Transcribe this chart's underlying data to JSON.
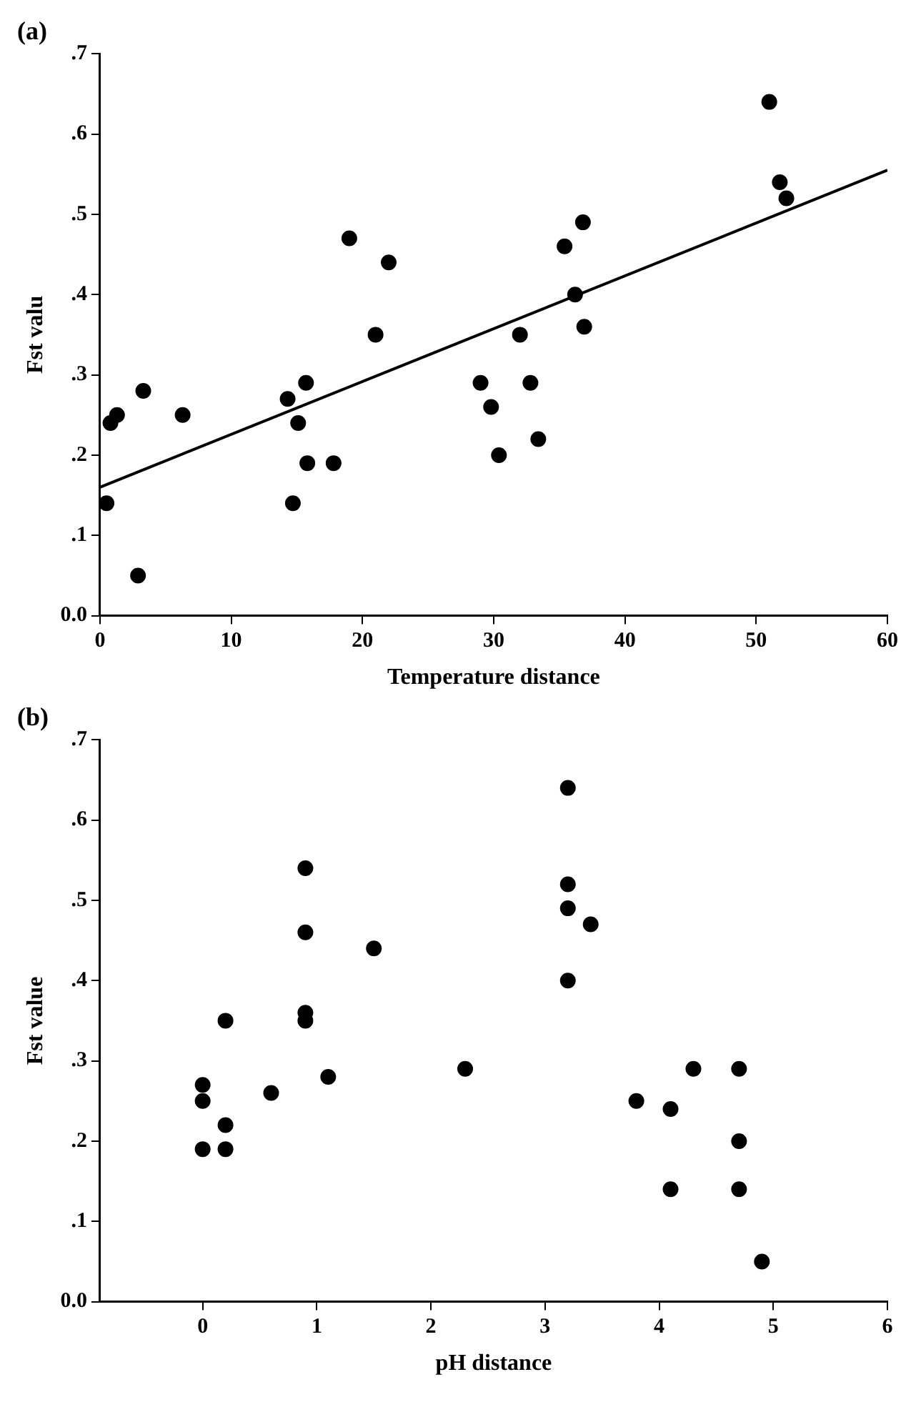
{
  "chart_data": [
    {
      "type": "scatter",
      "title": "(a)",
      "xlabel": "Temperature distance",
      "ylabel": "Fst valu",
      "xlim": [
        0,
        60
      ],
      "xticks": [
        0,
        10,
        20,
        30,
        40,
        50,
        60
      ],
      "ylim": [
        0,
        0.7
      ],
      "yticks": [
        {
          "value": 0,
          "label": "0.0"
        },
        {
          "value": 0.1,
          "label": ".1"
        },
        {
          "value": 0.2,
          "label": ".2"
        },
        {
          "value": 0.3,
          "label": ".3"
        },
        {
          "value": 0.4,
          "label": ".4"
        },
        {
          "value": 0.5,
          "label": ".5"
        },
        {
          "value": 0.6,
          "label": ".6"
        },
        {
          "value": 0.7,
          "label": ".7"
        }
      ],
      "grid": false,
      "legend": false,
      "series": [
        {
          "marker": "circle",
          "color": "#000000",
          "x": [
            0.5,
            0.8,
            1.3,
            3.3,
            2.9,
            6.3,
            14.3,
            15.1,
            15.7,
            14.7,
            15.8,
            17.8,
            19,
            21,
            22,
            29,
            29.8,
            30.4,
            32,
            32.8,
            33.4,
            35.4,
            36.2,
            36.8,
            36.9,
            51,
            51.8,
            52.3
          ],
          "values": [
            0.14,
            0.24,
            0.25,
            0.28,
            0.05,
            0.25,
            0.27,
            0.24,
            0.29,
            0.14,
            0.19,
            0.19,
            0.47,
            0.35,
            0.44,
            0.29,
            0.26,
            0.2,
            0.35,
            0.29,
            0.22,
            0.46,
            0.4,
            0.49,
            0.36,
            0.64,
            0.54,
            0.52
          ]
        },
        {
          "type": "line",
          "color": "#000000",
          "line_style": "solid",
          "x": [
            0,
            60
          ],
          "values": [
            0.16,
            0.555
          ]
        }
      ]
    },
    {
      "type": "scatter",
      "title": "(b)",
      "xlabel": "pH distance",
      "ylabel": "Fst value",
      "xlim": [
        -0.9,
        6
      ],
      "xticks": [
        0,
        1,
        2,
        3,
        4,
        5,
        6
      ],
      "ylim": [
        0,
        0.7
      ],
      "yticks": [
        {
          "value": 0,
          "label": "0.0"
        },
        {
          "value": 0.1,
          "label": ".1"
        },
        {
          "value": 0.2,
          "label": ".2"
        },
        {
          "value": 0.3,
          "label": ".3"
        },
        {
          "value": 0.4,
          "label": ".4"
        },
        {
          "value": 0.5,
          "label": ".5"
        },
        {
          "value": 0.6,
          "label": ".6"
        },
        {
          "value": 0.7,
          "label": ".7"
        }
      ],
      "grid": false,
      "legend": false,
      "series": [
        {
          "marker": "circle",
          "color": "#000000",
          "x": [
            0,
            0,
            0,
            0.2,
            0.2,
            0.2,
            0.6,
            0.9,
            0.9,
            0.9,
            0.9,
            1.1,
            1.5,
            2.3,
            3.2,
            3.2,
            3.2,
            3.4,
            3.2,
            3.8,
            4.1,
            4.3,
            4.7,
            4.1,
            4.7,
            4.7,
            4.9
          ],
          "values": [
            0.27,
            0.25,
            0.19,
            0.35,
            0.22,
            0.19,
            0.26,
            0.54,
            0.46,
            0.36,
            0.35,
            0.28,
            0.44,
            0.29,
            0.64,
            0.52,
            0.49,
            0.47,
            0.4,
            0.25,
            0.24,
            0.29,
            0.29,
            0.14,
            0.2,
            0.14,
            0.05
          ]
        }
      ]
    }
  ]
}
